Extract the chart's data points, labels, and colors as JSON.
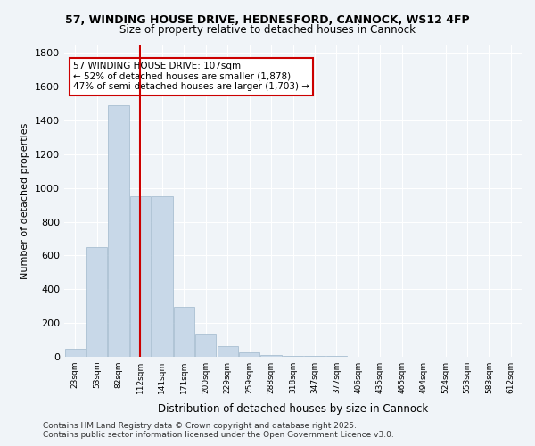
{
  "title1": "57, WINDING HOUSE DRIVE, HEDNESFORD, CANNOCK, WS12 4FP",
  "title2": "Size of property relative to detached houses in Cannock",
  "xlabel": "Distribution of detached houses by size in Cannock",
  "ylabel": "Number of detached properties",
  "bin_labels": [
    "23sqm",
    "53sqm",
    "82sqm",
    "112sqm",
    "141sqm",
    "171sqm",
    "200sqm",
    "229sqm",
    "259sqm",
    "288sqm",
    "318sqm",
    "347sqm",
    "377sqm",
    "406sqm",
    "435sqm",
    "465sqm",
    "494sqm",
    "524sqm",
    "553sqm",
    "583sqm",
    "612sqm"
  ],
  "bar_heights": [
    50,
    650,
    1490,
    950,
    950,
    295,
    140,
    65,
    25,
    10,
    5,
    4,
    3,
    2,
    1,
    1,
    1,
    0,
    0,
    0,
    0
  ],
  "bar_color": "#c8d8e8",
  "bar_edgecolor": "#a0b8cc",
  "vline_x": 2.97,
  "vline_color": "#cc0000",
  "annotation_text": "57 WINDING HOUSE DRIVE: 107sqm\n← 52% of detached houses are smaller (1,878)\n47% of semi-detached houses are larger (1,703) →",
  "annotation_box_color": "#ffffff",
  "annotation_box_edgecolor": "#cc0000",
  "ylim": [
    0,
    1850
  ],
  "yticks": [
    0,
    200,
    400,
    600,
    800,
    1000,
    1200,
    1400,
    1600,
    1800
  ],
  "background_color": "#f0f4f8",
  "grid_color": "#ffffff",
  "footer1": "Contains HM Land Registry data © Crown copyright and database right 2025.",
  "footer2": "Contains public sector information licensed under the Open Government Licence v3.0."
}
